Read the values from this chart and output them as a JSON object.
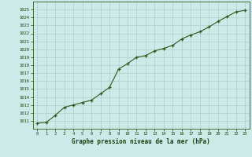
{
  "x": [
    0,
    1,
    2,
    3,
    4,
    5,
    6,
    7,
    8,
    9,
    10,
    11,
    12,
    13,
    14,
    15,
    16,
    17,
    18,
    19,
    20,
    21,
    22,
    23
  ],
  "y": [
    1010.7,
    1010.8,
    1011.7,
    1012.7,
    1013.0,
    1013.3,
    1013.6,
    1014.4,
    1015.2,
    1017.5,
    1018.2,
    1019.0,
    1019.2,
    1019.8,
    1020.1,
    1020.5,
    1021.3,
    1021.8,
    1022.2,
    1022.8,
    1023.5,
    1024.1,
    1024.7,
    1024.9
  ],
  "line_color": "#2d5a1b",
  "marker": "+",
  "marker_color": "#2d5a1b",
  "bg_color": "#cceae7",
  "grid_color": "#b0d0cc",
  "xlabel": "Graphe pression niveau de la mer (hPa)",
  "xlabel_color": "#1a4010",
  "tick_color": "#1a4010",
  "ylim_min": 1010,
  "ylim_max": 1026,
  "xlim_min": -0.5,
  "xlim_max": 23.5,
  "yticks": [
    1011,
    1012,
    1013,
    1014,
    1015,
    1016,
    1017,
    1018,
    1019,
    1020,
    1021,
    1022,
    1023,
    1024,
    1025
  ],
  "xticks": [
    0,
    1,
    2,
    3,
    4,
    5,
    6,
    7,
    8,
    9,
    10,
    11,
    12,
    13,
    14,
    15,
    16,
    17,
    18,
    19,
    20,
    21,
    22,
    23
  ]
}
